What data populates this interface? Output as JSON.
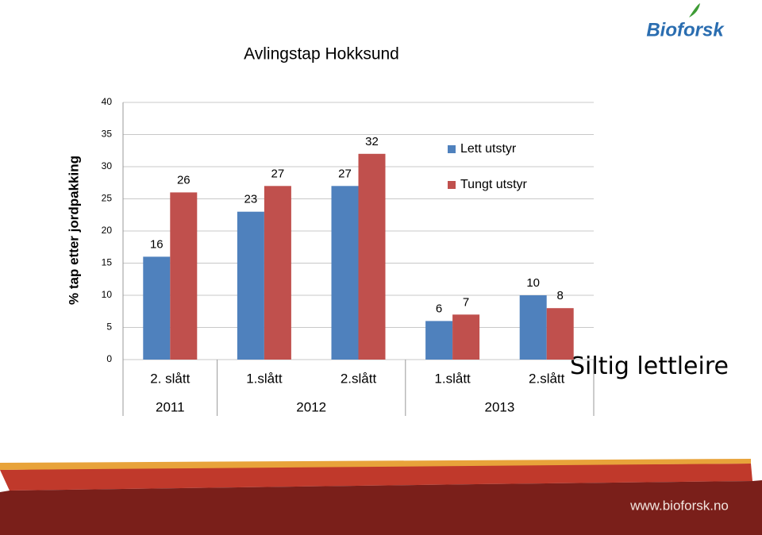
{
  "chart_data": {
    "type": "bar",
    "title": "Avlingstap Hokksund",
    "y_label": "% tap etter jordpakking",
    "categories": [
      "2. slått",
      "1.slått",
      "2.slått",
      "1.slått",
      "2.slått"
    ],
    "groups": [
      {
        "label": "2011",
        "size": 1
      },
      {
        "label": "2012",
        "size": 2
      },
      {
        "label": "2013",
        "size": 2
      }
    ],
    "series": [
      {
        "name": "Lett utstyr",
        "color": "#4f81bd",
        "values": [
          16,
          23,
          27,
          6,
          10
        ]
      },
      {
        "name": "Tungt utstyr",
        "color": "#c0504d",
        "values": [
          26,
          27,
          32,
          7,
          8
        ]
      }
    ],
    "ylim": [
      0,
      40
    ],
    "yticks": [
      0,
      5,
      10,
      15,
      20,
      25,
      30,
      35,
      40
    ],
    "grid": true
  },
  "annotation": "Siltig lettleire",
  "logo": "Bioforsk",
  "website": "www.bioforsk.no"
}
